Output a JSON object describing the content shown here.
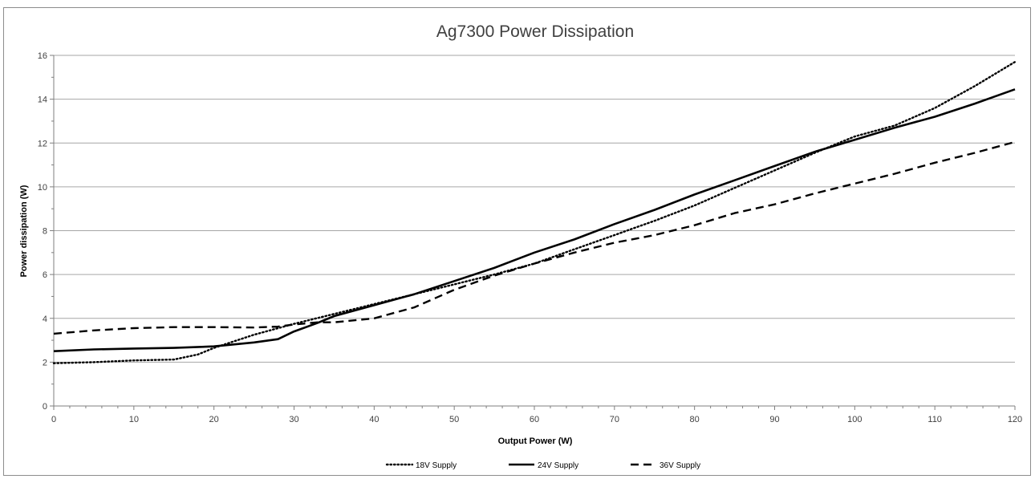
{
  "chart_data": {
    "type": "line",
    "title": "Ag7300 Power Dissipation",
    "xlabel": "Output Power (W)",
    "ylabel": "Power dissipation (W)",
    "xlim": [
      0,
      120
    ],
    "ylim": [
      0,
      16
    ],
    "x_ticks": [
      "0",
      "10",
      "20",
      "30",
      "40",
      "50",
      "60",
      "70",
      "80",
      "90",
      "100",
      "110",
      "120"
    ],
    "y_ticks": [
      "0",
      "2",
      "4",
      "6",
      "8",
      "10",
      "12",
      "14",
      "16"
    ],
    "grid": "horizontal",
    "legend_position": "bottom",
    "series": [
      {
        "name": "18V Supply",
        "style": "dotted",
        "color": "#000000",
        "x": [
          0,
          5,
          10,
          15,
          18,
          20,
          25,
          30,
          35,
          40,
          45,
          50,
          55,
          60,
          65,
          70,
          75,
          80,
          85,
          90,
          95,
          100,
          105,
          110,
          115,
          120
        ],
        "y": [
          1.95,
          2.0,
          2.08,
          2.12,
          2.35,
          2.65,
          3.25,
          3.75,
          4.2,
          4.65,
          5.1,
          5.55,
          6.0,
          6.5,
          7.15,
          7.8,
          8.45,
          9.15,
          9.95,
          10.75,
          11.55,
          12.3,
          12.8,
          13.6,
          14.6,
          15.7
        ]
      },
      {
        "name": "24V Supply",
        "style": "solid",
        "color": "#000000",
        "x": [
          0,
          5,
          10,
          15,
          20,
          25,
          28,
          30,
          33,
          35,
          40,
          45,
          50,
          55,
          60,
          65,
          70,
          75,
          80,
          85,
          90,
          95,
          100,
          105,
          110,
          115,
          120
        ],
        "y": [
          2.5,
          2.58,
          2.62,
          2.65,
          2.72,
          2.9,
          3.05,
          3.4,
          3.8,
          4.1,
          4.6,
          5.1,
          5.7,
          6.3,
          7.0,
          7.6,
          8.3,
          8.95,
          9.65,
          10.3,
          10.95,
          11.6,
          12.15,
          12.7,
          13.2,
          13.8,
          14.45
        ]
      },
      {
        "name": "36V Supply",
        "style": "dashed",
        "color": "#000000",
        "x": [
          0,
          5,
          10,
          15,
          20,
          25,
          28,
          30,
          33,
          35,
          40,
          45,
          50,
          55,
          60,
          65,
          70,
          75,
          80,
          85,
          90,
          95,
          100,
          105,
          110,
          115,
          120
        ],
        "y": [
          3.3,
          3.45,
          3.55,
          3.6,
          3.6,
          3.58,
          3.62,
          3.72,
          3.82,
          3.82,
          4.0,
          4.5,
          5.3,
          5.95,
          6.5,
          7.0,
          7.45,
          7.8,
          8.25,
          8.8,
          9.2,
          9.7,
          10.15,
          10.6,
          11.1,
          11.55,
          12.05
        ]
      }
    ]
  }
}
